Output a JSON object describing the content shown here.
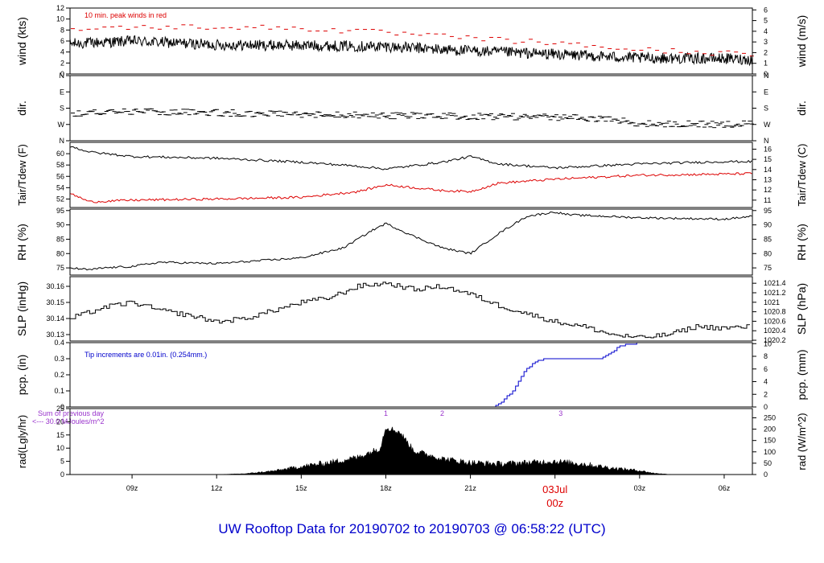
{
  "title": "UW Rooftop Data for 20190702  to  20190703 @ 06:58:22  (UTC)",
  "colors": {
    "frame": "#000000",
    "line": "#000000",
    "red": "#dd0000",
    "blue": "#0000cc",
    "purple": "#9933cc"
  },
  "chart_data": {
    "type": "line",
    "x_axis": {
      "ticks": [
        "09z",
        "12z",
        "15z",
        "18z",
        "21z",
        "00z",
        "03z",
        "06z"
      ],
      "tick_hours": [
        9,
        12,
        15,
        18,
        21,
        24,
        27,
        30
      ],
      "xlim_hours": [
        6.8,
        31.0
      ],
      "date_label": "03Jul",
      "date_sub_label": "00z",
      "date_label_color": "#dd0000"
    },
    "panels": [
      {
        "id": "wind",
        "ylabel_left": "wind (kts)",
        "ylabel_right": "wind (m/s)",
        "left_ticks": [
          0,
          2,
          4,
          6,
          8,
          10,
          12
        ],
        "ylim": [
          0,
          12
        ],
        "right_ticks": [
          0,
          1,
          2,
          3,
          4,
          5,
          6
        ],
        "right_conv": 1.9438,
        "annotation": "10 min. peak winds in red",
        "annotation_color": "#dd0000",
        "series": [
          {
            "name": "wind speed",
            "style": "noisy",
            "color": "#000000",
            "noise": 1.0,
            "x": [
              6.8,
              9,
              12,
              15,
              18,
              21,
              24,
              27,
              30,
              31
            ],
            "y": [
              5.5,
              6.0,
              5.3,
              5.2,
              5.0,
              4.2,
              3.6,
              2.9,
              2.8,
              2.6
            ]
          },
          {
            "name": "peak winds",
            "style": "dashes",
            "color": "#dd0000",
            "x": [
              6.8,
              9,
              12,
              15,
              18,
              21,
              24,
              27,
              30,
              31
            ],
            "y": [
              8.2,
              8.5,
              8.6,
              8.3,
              7.5,
              6.5,
              5.6,
              4.4,
              3.8,
              3.5
            ]
          }
        ]
      },
      {
        "id": "dir",
        "ylabel_left": "dir.",
        "ylabel_right": "dir.",
        "left_ticks": [
          "N",
          "E",
          "S",
          "W",
          "N"
        ],
        "left_tick_values": [
          0,
          90,
          180,
          270,
          360
        ],
        "ylim": [
          0,
          360
        ],
        "inverted": true,
        "right_ticks": [
          "N",
          "E",
          "S",
          "W",
          "N"
        ],
        "series": [
          {
            "name": "wind direction",
            "style": "dashes",
            "color": "#000000",
            "x": [
              6.8,
              9,
              12,
              15,
              18,
              21,
              24,
              26,
              27,
              30,
              31
            ],
            "y": [
              210,
              200,
              205,
              215,
              220,
              225,
              230,
              240,
              265,
              270,
              265
            ],
            "noise": 18
          }
        ]
      },
      {
        "id": "temp",
        "ylabel_left": "Tair/Tdew (F)",
        "ylabel_right": "Tair/Tdew (C)",
        "left_ticks": [
          52,
          54,
          56,
          58,
          60
        ],
        "ylim": [
          50.5,
          62.0
        ],
        "right_ticks": [
          11,
          12,
          13,
          14,
          15,
          16
        ],
        "series": [
          {
            "name": "Tair",
            "style": "line",
            "color": "#000000",
            "noise": 0.2,
            "x": [
              6.8,
              7.5,
              9,
              12,
              15,
              17,
              18,
              20,
              21,
              22,
              24,
              27,
              30,
              31
            ],
            "y": [
              61.3,
              60.3,
              59.5,
              59.2,
              58.5,
              57.8,
              57.3,
              58.5,
              59.5,
              58.2,
              57.5,
              58.2,
              58.6,
              58.6
            ]
          },
          {
            "name": "Tdew",
            "style": "line",
            "color": "#dd0000",
            "noise": 0.2,
            "x": [
              6.8,
              7.5,
              9,
              12,
              15,
              17,
              18,
              20,
              21,
              22,
              24,
              27,
              30,
              31
            ],
            "y": [
              53.0,
              51.5,
              51.8,
              52.0,
              52.3,
              53.3,
              54.5,
              53.5,
              53.3,
              54.8,
              55.5,
              56.2,
              56.4,
              56.5
            ]
          }
        ]
      },
      {
        "id": "rh",
        "ylabel_left": "RH (%)",
        "ylabel_right": "RH (%)",
        "left_ticks": [
          75,
          80,
          85,
          90,
          95
        ],
        "ylim": [
          72.5,
          95.5
        ],
        "right_ticks": [
          75,
          80,
          85,
          90,
          95
        ],
        "series": [
          {
            "name": "RH",
            "style": "line",
            "color": "#000000",
            "noise": 0.35,
            "x": [
              6.8,
              7.5,
              8,
              9,
              10,
              12,
              15,
              16.5,
              17.5,
              18,
              19,
              20,
              21,
              22,
              23,
              24,
              24.5,
              27,
              30,
              31
            ],
            "y": [
              75,
              74.3,
              75,
              75.5,
              77,
              76.5,
              78.5,
              82,
              88,
              90.5,
              86,
              82,
              80,
              87,
              93,
              94.5,
              93.5,
              92.5,
              92,
              93
            ]
          }
        ]
      },
      {
        "id": "slp",
        "ylabel_left": "SLP (inHg)",
        "ylabel_right": "SLP (hPa)",
        "left_ticks": [
          30.13,
          30.14,
          30.15,
          30.16
        ],
        "ylim": [
          30.126,
          30.166
        ],
        "right_ticks": [
          1020.2,
          1020.4,
          1020.6,
          1020.8,
          1021,
          1021.2,
          1021.4
        ],
        "right_conv": 33.8639,
        "series": [
          {
            "name": "SLP",
            "style": "step",
            "color": "#000000",
            "noise": 0.0015,
            "x": [
              6.8,
              8,
              9,
              10,
              11,
              12,
              13,
              14,
              15,
              16,
              17,
              18,
              19,
              20,
              21,
              22,
              23,
              24,
              25,
              26,
              27,
              28,
              29,
              30,
              31
            ],
            "y": [
              30.14,
              30.147,
              30.15,
              30.145,
              30.142,
              30.138,
              30.14,
              30.145,
              30.15,
              30.153,
              30.16,
              30.162,
              30.158,
              30.16,
              30.155,
              30.148,
              30.143,
              30.138,
              30.135,
              30.13,
              30.128,
              30.13,
              30.135,
              30.134,
              30.135
            ]
          }
        ]
      },
      {
        "id": "pcp",
        "ylabel_left": "pcp. (in)",
        "ylabel_right": "pcp. (mm)",
        "left_ticks": [
          0.0,
          0.1,
          0.2,
          0.3,
          0.4
        ],
        "ylim": [
          0,
          0.4
        ],
        "right_ticks": [
          0,
          2,
          4,
          6,
          8,
          10
        ],
        "right_conv": 0.03937,
        "annotation": "Tip increments are 0.01in. (0.254mm.)",
        "annotation_color": "#0000cc",
        "series": [
          {
            "name": "precipitation",
            "style": "step",
            "color": "#0000cc",
            "x": [
              6.8,
              21.8,
              22.1,
              22.5,
              22.9,
              23.3,
              23.6,
              25.6,
              26.0,
              26.3,
              27.0,
              31.0
            ],
            "y": [
              0,
              0,
              0.03,
              0.1,
              0.22,
              0.28,
              0.3,
              0.3,
              0.34,
              0.38,
              0.4,
              0.4
            ]
          }
        ]
      },
      {
        "id": "rad",
        "ylabel_left": "rad(Lgly/hr)",
        "ylabel_right": "rad (W/m^2)",
        "left_ticks": [
          0,
          5,
          10,
          15,
          20,
          25
        ],
        "ylim": [
          0,
          25
        ],
        "right_ticks": [
          0,
          50,
          100,
          150,
          200,
          250
        ],
        "right_conv": 0.086,
        "annotation_lines": [
          "Sum of previous day",
          "<--- 30.0 MJoules/m^2"
        ],
        "annotation_color": "#9933cc",
        "cloud_markers": [
          {
            "label": "1",
            "hour": 18.0
          },
          {
            "label": "2",
            "hour": 20.0
          },
          {
            "label": "3",
            "hour": 24.2
          }
        ],
        "series": [
          {
            "name": "radiation",
            "style": "area",
            "color": "#000000",
            "noise": 1.2,
            "x": [
              6.8,
              12.0,
              13.0,
              14.0,
              15.0,
              16.0,
              17.0,
              17.8,
              18.0,
              18.5,
              19.0,
              20.0,
              21.0,
              22.0,
              23.0,
              24.0,
              25.0,
              26.0,
              27.0,
              27.5,
              28.0,
              28.5,
              31.0
            ],
            "y": [
              0,
              0,
              0.3,
              1.3,
              3.0,
              4.5,
              6.5,
              10,
              18,
              16,
              9,
              6,
              4.5,
              4.0,
              4.5,
              5,
              4,
              2.5,
              1.5,
              0.5,
              0.1,
              0,
              0
            ]
          }
        ]
      }
    ]
  }
}
